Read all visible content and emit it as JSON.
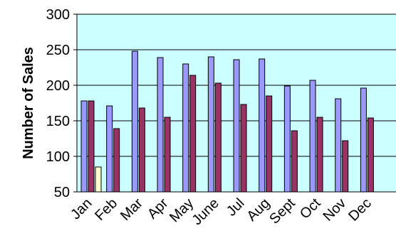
{
  "chart_data": {
    "type": "bar",
    "title": "",
    "xlabel": "",
    "ylabel": "Number of Sales",
    "ylim": [
      50,
      300
    ],
    "yticks": [
      50,
      100,
      150,
      200,
      250,
      300
    ],
    "grid": true,
    "categories": [
      "Jan",
      "Feb",
      "Mar",
      "Apr",
      "May",
      "June",
      "Jul",
      "Aug",
      "Sept",
      "Oct",
      "Nov",
      "Dec"
    ],
    "series": [
      {
        "values": [
          178,
          171,
          248,
          239,
          230,
          240,
          236,
          237,
          199,
          207,
          181,
          196
        ],
        "color": "#9999ff"
      },
      {
        "values": [
          178,
          139,
          168,
          155,
          214,
          203,
          173,
          185,
          136,
          155,
          122,
          154
        ],
        "color": "#993366"
      },
      {
        "values": [
          85,
          null,
          null,
          null,
          null,
          null,
          null,
          null,
          null,
          null,
          null,
          null
        ],
        "color": "#ffffcc"
      }
    ],
    "plot_background": "#ccffff"
  }
}
